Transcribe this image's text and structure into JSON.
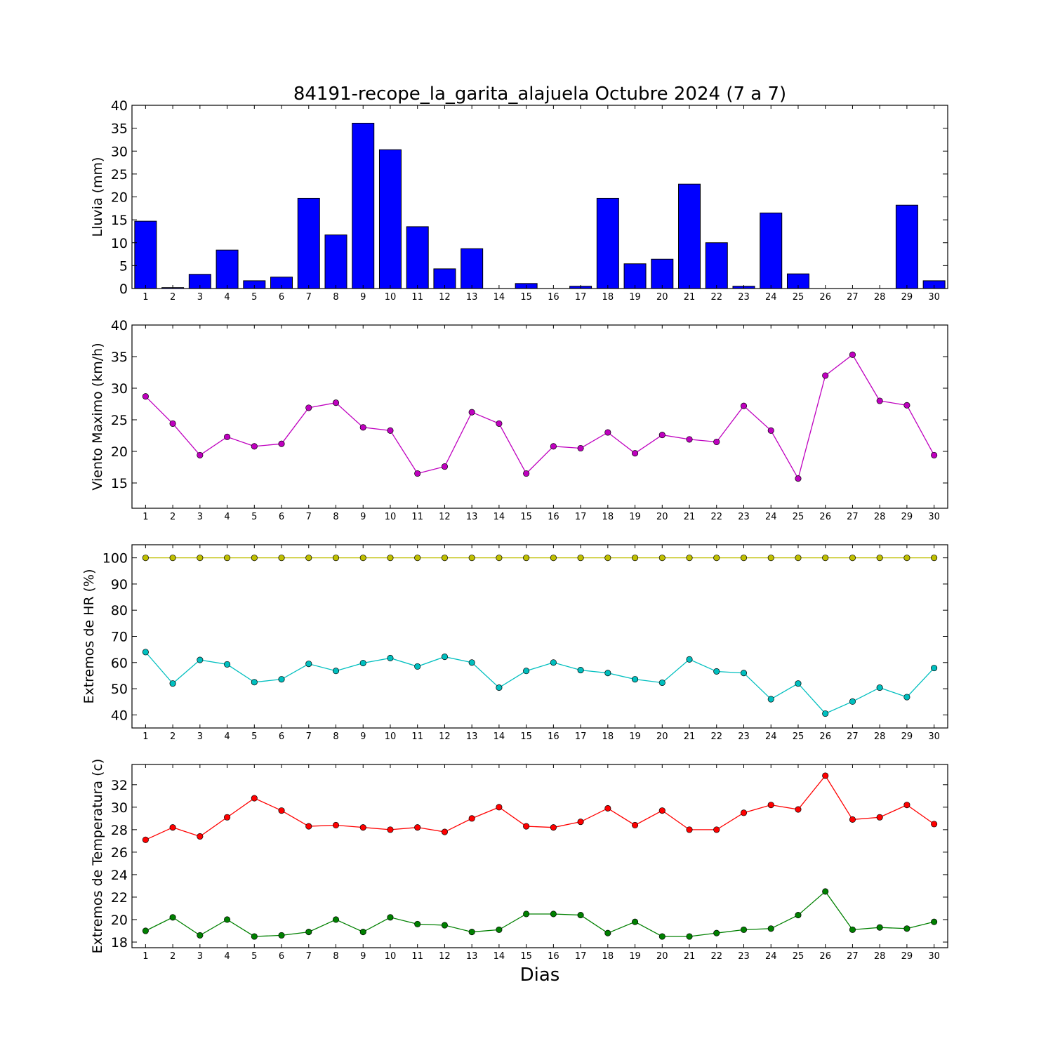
{
  "figure": {
    "title": "84191-recope_la_garita_alajuela Octubre 2024  (7 a 7)",
    "xlabel": "Dias"
  },
  "chart_data": [
    {
      "type": "bar",
      "ylabel": "Lluvia (mm)",
      "ylim": [
        0,
        40
      ],
      "yticks": [
        0,
        5,
        10,
        15,
        20,
        25,
        30,
        35,
        40
      ],
      "xlim": [
        0.5,
        30.5
      ],
      "x": [
        1,
        2,
        3,
        4,
        5,
        6,
        7,
        8,
        9,
        10,
        11,
        12,
        13,
        14,
        15,
        16,
        17,
        18,
        19,
        20,
        21,
        22,
        23,
        24,
        25,
        26,
        27,
        28,
        29,
        30
      ],
      "grid": false,
      "series": [
        {
          "color": "#0000ff",
          "values": [
            14.7,
            0.2,
            3.1,
            8.4,
            1.7,
            2.5,
            19.7,
            11.7,
            36.1,
            30.3,
            13.5,
            4.3,
            8.7,
            0,
            1.1,
            0,
            0.5,
            19.7,
            5.4,
            6.4,
            22.8,
            10.0,
            0.5,
            16.5,
            3.2,
            0,
            0,
            0,
            18.2,
            1.7
          ]
        }
      ]
    },
    {
      "type": "line",
      "ylabel": "Viento Maximo (km/h)",
      "ylim": [
        11,
        40
      ],
      "yticks": [
        15,
        20,
        25,
        30,
        35,
        40
      ],
      "xlim": [
        0.5,
        30.5
      ],
      "x": [
        1,
        2,
        3,
        4,
        5,
        6,
        7,
        8,
        9,
        10,
        11,
        12,
        13,
        14,
        15,
        16,
        17,
        18,
        19,
        20,
        21,
        22,
        23,
        24,
        25,
        26,
        27,
        28,
        29,
        30
      ],
      "grid": false,
      "series": [
        {
          "color": "#bf00bf",
          "values": [
            28.7,
            24.4,
            19.4,
            22.3,
            20.8,
            21.2,
            26.9,
            27.7,
            23.8,
            23.3,
            16.5,
            17.6,
            26.2,
            24.4,
            16.5,
            20.8,
            20.5,
            23.0,
            19.7,
            22.6,
            21.9,
            21.5,
            27.2,
            23.3,
            15.7,
            32.0,
            35.3,
            28.0,
            27.3,
            19.4
          ]
        }
      ]
    },
    {
      "type": "line",
      "ylabel": "Extremos de HR (%)",
      "ylim": [
        35,
        105
      ],
      "yticks": [
        40,
        50,
        60,
        70,
        80,
        90,
        100
      ],
      "xlim": [
        0.5,
        30.5
      ],
      "x": [
        1,
        2,
        3,
        4,
        5,
        6,
        7,
        8,
        9,
        10,
        11,
        12,
        13,
        14,
        15,
        16,
        17,
        18,
        19,
        20,
        21,
        22,
        23,
        24,
        25,
        26,
        27,
        28,
        29,
        30
      ],
      "grid": false,
      "series": [
        {
          "color": "#bfbf00",
          "values": [
            100,
            100,
            100,
            100,
            100,
            100,
            100,
            100,
            100,
            100,
            100,
            100,
            100,
            100,
            100,
            100,
            100,
            100,
            100,
            100,
            100,
            100,
            100,
            100,
            100,
            100,
            100,
            100,
            100,
            100
          ]
        },
        {
          "color": "#00bfbf",
          "values": [
            64.0,
            52.0,
            61.0,
            59.3,
            52.5,
            53.6,
            59.5,
            56.8,
            59.8,
            61.7,
            58.5,
            62.2,
            60.0,
            50.4,
            56.8,
            60.0,
            57.1,
            56.0,
            53.6,
            52.3,
            61.2,
            56.6,
            56.0,
            46.0,
            52.0,
            40.5,
            45.1,
            50.4,
            46.8,
            57.9
          ]
        }
      ]
    },
    {
      "type": "line",
      "ylabel": "Extremos de Temperatura (c)",
      "ylim": [
        17.5,
        33.8
      ],
      "yticks": [
        18,
        20,
        22,
        24,
        26,
        28,
        30,
        32
      ],
      "xlim": [
        0.5,
        30.5
      ],
      "x": [
        1,
        2,
        3,
        4,
        5,
        6,
        7,
        8,
        9,
        10,
        11,
        12,
        13,
        14,
        15,
        16,
        17,
        18,
        19,
        20,
        21,
        22,
        23,
        24,
        25,
        26,
        27,
        28,
        29,
        30
      ],
      "grid": false,
      "series": [
        {
          "color": "#ff0000",
          "values": [
            27.1,
            28.2,
            27.4,
            29.1,
            30.8,
            29.7,
            28.3,
            28.4,
            28.2,
            28.0,
            28.2,
            27.8,
            29.0,
            30.0,
            28.3,
            28.2,
            28.7,
            29.9,
            28.4,
            29.7,
            28.0,
            28.0,
            29.5,
            30.2,
            29.8,
            32.8,
            28.9,
            29.1,
            30.2,
            28.5
          ]
        },
        {
          "color": "#008000",
          "values": [
            19.0,
            20.2,
            18.6,
            20.0,
            18.5,
            18.6,
            18.9,
            20.0,
            18.9,
            20.2,
            19.6,
            19.5,
            18.9,
            19.1,
            20.5,
            20.5,
            20.4,
            18.8,
            19.8,
            18.5,
            18.5,
            18.8,
            19.1,
            19.2,
            20.4,
            22.5,
            19.1,
            19.3,
            19.2,
            19.8
          ]
        }
      ]
    }
  ]
}
